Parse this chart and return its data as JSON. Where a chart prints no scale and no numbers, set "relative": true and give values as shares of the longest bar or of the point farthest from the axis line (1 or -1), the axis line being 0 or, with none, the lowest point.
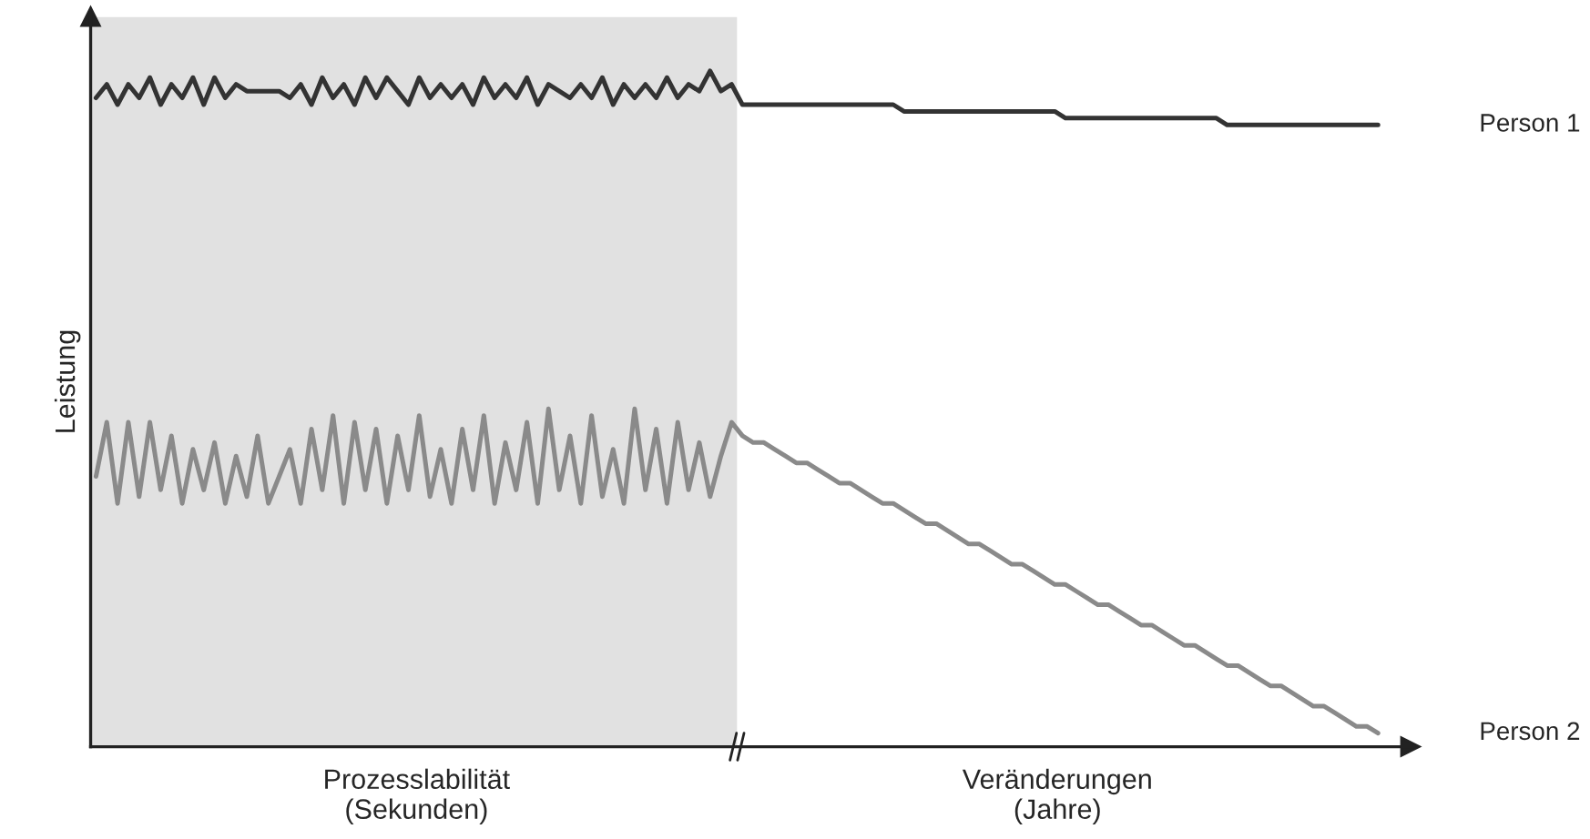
{
  "chart_data": {
    "type": "line",
    "relative": true,
    "ylabel": "Leistung",
    "annotations": [
      "Prozesslabilität\n(Sekunden)",
      "Veränderungen\n(Jahre)"
    ],
    "categories": [
      null,
      null,
      null,
      null,
      null,
      null,
      null,
      null,
      null,
      null,
      null,
      null,
      null,
      null,
      null,
      null,
      null,
      null,
      null,
      null,
      null,
      null,
      null,
      null,
      null,
      null,
      null,
      null,
      null,
      null,
      null,
      null,
      null,
      null,
      null,
      null,
      null,
      null,
      null,
      null,
      null,
      null,
      null,
      null,
      null,
      null,
      null,
      null,
      null,
      null,
      null,
      null,
      null,
      null,
      null,
      null,
      null,
      null,
      null,
      null,
      null,
      null,
      null,
      null,
      null,
      null,
      null,
      null,
      null,
      null,
      null,
      null,
      null,
      null,
      null,
      null,
      null,
      null,
      null,
      null,
      null,
      null,
      null,
      null,
      null,
      null,
      null,
      null,
      null,
      null,
      null,
      null,
      null,
      null,
      null,
      null,
      null,
      null,
      null,
      null,
      null,
      null,
      null,
      null,
      null,
      null,
      null,
      null,
      null,
      null,
      null,
      null,
      null,
      null,
      null,
      null,
      null,
      null,
      null,
      null
    ],
    "series": [
      {
        "name": "Person 1",
        "color": "#333333",
        "values": [
          0.96,
          0.98,
          0.95,
          0.98,
          0.96,
          0.99,
          0.95,
          0.98,
          0.96,
          0.99,
          0.95,
          0.99,
          0.96,
          0.98,
          0.97,
          0.97,
          0.97,
          0.97,
          0.96,
          0.98,
          0.95,
          0.99,
          0.96,
          0.98,
          0.95,
          0.99,
          0.96,
          0.99,
          0.97,
          0.95,
          0.99,
          0.96,
          0.98,
          0.96,
          0.98,
          0.95,
          0.99,
          0.96,
          0.98,
          0.96,
          0.99,
          0.95,
          0.98,
          0.97,
          0.96,
          0.98,
          0.96,
          0.99,
          0.95,
          0.98,
          0.96,
          0.98,
          0.96,
          0.99,
          0.96,
          0.98,
          0.97,
          1.0,
          0.97,
          0.98,
          0.95,
          0.95,
          0.95,
          0.95,
          0.95,
          0.95,
          0.95,
          0.95,
          0.95,
          0.95,
          0.95,
          0.95,
          0.95,
          0.95,
          0.95,
          0.94,
          0.94,
          0.94,
          0.94,
          0.94,
          0.94,
          0.94,
          0.94,
          0.94,
          0.94,
          0.94,
          0.94,
          0.94,
          0.94,
          0.94,
          0.93,
          0.93,
          0.93,
          0.93,
          0.93,
          0.93,
          0.93,
          0.93,
          0.93,
          0.93,
          0.93,
          0.93,
          0.93,
          0.93,
          0.93,
          0.92,
          0.92,
          0.92,
          0.92,
          0.92,
          0.92,
          0.92,
          0.92,
          0.92,
          0.92,
          0.92,
          0.92,
          0.92,
          0.92,
          0.92
        ]
      },
      {
        "name": "Person 2",
        "color": "#8a8a8a",
        "values": [
          0.4,
          0.48,
          0.36,
          0.48,
          0.37,
          0.48,
          0.38,
          0.46,
          0.36,
          0.44,
          0.38,
          0.45,
          0.36,
          0.43,
          0.37,
          0.46,
          0.36,
          0.4,
          0.44,
          0.36,
          0.47,
          0.38,
          0.49,
          0.36,
          0.48,
          0.38,
          0.47,
          0.36,
          0.46,
          0.38,
          0.49,
          0.37,
          0.44,
          0.36,
          0.47,
          0.38,
          0.49,
          0.36,
          0.45,
          0.38,
          0.48,
          0.36,
          0.5,
          0.38,
          0.46,
          0.36,
          0.49,
          0.37,
          0.44,
          0.36,
          0.5,
          0.38,
          0.47,
          0.36,
          0.48,
          0.38,
          0.45,
          0.37,
          0.43,
          0.48,
          0.46,
          0.45,
          0.45,
          0.44,
          0.43,
          0.42,
          0.42,
          0.41,
          0.4,
          0.39,
          0.39,
          0.38,
          0.37,
          0.36,
          0.36,
          0.35,
          0.34,
          0.33,
          0.33,
          0.32,
          0.31,
          0.3,
          0.3,
          0.29,
          0.28,
          0.27,
          0.27,
          0.26,
          0.25,
          0.24,
          0.24,
          0.23,
          0.22,
          0.21,
          0.21,
          0.2,
          0.19,
          0.18,
          0.18,
          0.17,
          0.16,
          0.15,
          0.15,
          0.14,
          0.13,
          0.12,
          0.12,
          0.11,
          0.1,
          0.09,
          0.09,
          0.08,
          0.07,
          0.06,
          0.06,
          0.05,
          0.04,
          0.03,
          0.03,
          0.02
        ]
      }
    ],
    "legend": false
  }
}
